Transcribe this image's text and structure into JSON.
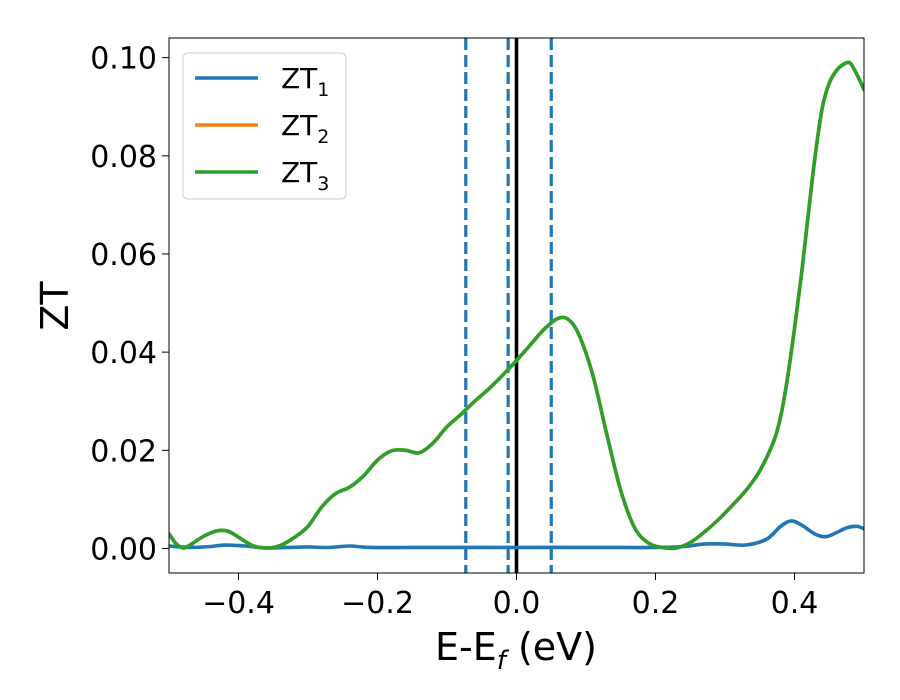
{
  "chart_data": {
    "type": "line",
    "title": "",
    "xlabel": "E-E",
    "xlabel_subscript": "f",
    "xlabel_unit": " (eV)",
    "ylabel": "ZT",
    "xlim": [
      -0.5,
      0.5
    ],
    "ylim": [
      -0.005,
      0.104
    ],
    "x_ticks": [
      -0.4,
      -0.2,
      0.0,
      0.2,
      0.4
    ],
    "x_tick_labels": [
      "−0.4",
      "−0.2",
      "0.0",
      "0.2",
      "0.4"
    ],
    "y_ticks": [
      0.0,
      0.02,
      0.04,
      0.06,
      0.08,
      0.1
    ],
    "y_tick_labels": [
      "0.00",
      "0.02",
      "0.04",
      "0.06",
      "0.08",
      "0.10"
    ],
    "grid": false,
    "legend_position": "top-left",
    "vertical_lines": [
      {
        "x": -0.073,
        "style": "dashed",
        "color": "#1f77b4"
      },
      {
        "x": -0.012,
        "style": "dashed",
        "color": "#1f77b4"
      },
      {
        "x": 0.0,
        "style": "solid",
        "color": "#000000"
      },
      {
        "x": 0.05,
        "style": "dashed",
        "color": "#1f77b4"
      }
    ],
    "series": [
      {
        "name": "ZT",
        "subscript": "1",
        "color": "#1f77b4",
        "points": [
          [
            -0.5,
            0.0005
          ],
          [
            -0.47,
            0.0002
          ],
          [
            -0.44,
            0.0004
          ],
          [
            -0.42,
            0.0007
          ],
          [
            -0.39,
            0.0005
          ],
          [
            -0.36,
            0.0001
          ],
          [
            -0.33,
            0.0002
          ],
          [
            -0.3,
            0.0003
          ],
          [
            -0.27,
            0.0002
          ],
          [
            -0.24,
            0.0005
          ],
          [
            -0.21,
            0.0002
          ],
          [
            -0.15,
            0.0002
          ],
          [
            -0.1,
            0.0002
          ],
          [
            -0.05,
            0.0002
          ],
          [
            0.0,
            0.0002
          ],
          [
            0.05,
            0.0002
          ],
          [
            0.1,
            0.0002
          ],
          [
            0.15,
            0.0002
          ],
          [
            0.2,
            0.0002
          ],
          [
            0.24,
            0.0004
          ],
          [
            0.27,
            0.0009
          ],
          [
            0.3,
            0.0009
          ],
          [
            0.33,
            0.0007
          ],
          [
            0.36,
            0.0019
          ],
          [
            0.38,
            0.0045
          ],
          [
            0.395,
            0.0056
          ],
          [
            0.41,
            0.0048
          ],
          [
            0.43,
            0.0029
          ],
          [
            0.445,
            0.0024
          ],
          [
            0.46,
            0.0032
          ],
          [
            0.475,
            0.0042
          ],
          [
            0.49,
            0.0045
          ],
          [
            0.5,
            0.004
          ]
        ]
      },
      {
        "name": "ZT",
        "subscript": "2",
        "color": "#ff7f0e",
        "points": [
          [
            -0.5,
            0.003
          ],
          [
            -0.49,
            0.001
          ],
          [
            -0.48,
            0.0001
          ],
          [
            -0.47,
            0.0007
          ],
          [
            -0.45,
            0.0025
          ],
          [
            -0.43,
            0.0036
          ],
          [
            -0.415,
            0.0035
          ],
          [
            -0.4,
            0.0023
          ],
          [
            -0.38,
            0.0006
          ],
          [
            -0.36,
            0.0001
          ],
          [
            -0.34,
            0.0006
          ],
          [
            -0.32,
            0.0022
          ],
          [
            -0.3,
            0.0045
          ],
          [
            -0.28,
            0.0085
          ],
          [
            -0.26,
            0.0112
          ],
          [
            -0.24,
            0.0125
          ],
          [
            -0.22,
            0.0148
          ],
          [
            -0.2,
            0.018
          ],
          [
            -0.18,
            0.0199
          ],
          [
            -0.16,
            0.02
          ],
          [
            -0.14,
            0.0195
          ],
          [
            -0.12,
            0.0215
          ],
          [
            -0.1,
            0.0248
          ],
          [
            -0.08,
            0.0273
          ],
          [
            -0.06,
            0.03
          ],
          [
            -0.04,
            0.0325
          ],
          [
            -0.02,
            0.0353
          ],
          [
            0.0,
            0.0383
          ],
          [
            0.02,
            0.0415
          ],
          [
            0.04,
            0.0447
          ],
          [
            0.06,
            0.0469
          ],
          [
            0.075,
            0.0466
          ],
          [
            0.09,
            0.0435
          ],
          [
            0.11,
            0.0352
          ],
          [
            0.13,
            0.0232
          ],
          [
            0.15,
            0.0118
          ],
          [
            0.17,
            0.0042
          ],
          [
            0.19,
            0.0011
          ],
          [
            0.21,
            0.0002
          ],
          [
            0.23,
            0.0001
          ],
          [
            0.25,
            0.0012
          ],
          [
            0.27,
            0.0033
          ],
          [
            0.29,
            0.0058
          ],
          [
            0.31,
            0.0087
          ],
          [
            0.33,
            0.0118
          ],
          [
            0.35,
            0.0158
          ],
          [
            0.37,
            0.0218
          ],
          [
            0.38,
            0.0268
          ],
          [
            0.39,
            0.0348
          ],
          [
            0.4,
            0.0448
          ],
          [
            0.41,
            0.0558
          ],
          [
            0.42,
            0.0683
          ],
          [
            0.43,
            0.0803
          ],
          [
            0.44,
            0.0898
          ],
          [
            0.45,
            0.0948
          ],
          [
            0.46,
            0.0973
          ],
          [
            0.47,
            0.0986
          ],
          [
            0.48,
            0.0989
          ],
          [
            0.49,
            0.0965
          ],
          [
            0.5,
            0.0935
          ]
        ]
      },
      {
        "name": "ZT",
        "subscript": "3",
        "color": "#2ca02c",
        "points": [
          [
            -0.5,
            0.003
          ],
          [
            -0.49,
            0.001
          ],
          [
            -0.48,
            0.0001
          ],
          [
            -0.47,
            0.0007
          ],
          [
            -0.45,
            0.0025
          ],
          [
            -0.43,
            0.0036
          ],
          [
            -0.415,
            0.0035
          ],
          [
            -0.4,
            0.0023
          ],
          [
            -0.38,
            0.0006
          ],
          [
            -0.36,
            0.0001
          ],
          [
            -0.34,
            0.0006
          ],
          [
            -0.32,
            0.0022
          ],
          [
            -0.3,
            0.0045
          ],
          [
            -0.28,
            0.0085
          ],
          [
            -0.26,
            0.0112
          ],
          [
            -0.24,
            0.0125
          ],
          [
            -0.22,
            0.0148
          ],
          [
            -0.2,
            0.018
          ],
          [
            -0.18,
            0.0199
          ],
          [
            -0.16,
            0.02
          ],
          [
            -0.14,
            0.0195
          ],
          [
            -0.12,
            0.0215
          ],
          [
            -0.1,
            0.0248
          ],
          [
            -0.08,
            0.0273
          ],
          [
            -0.06,
            0.03
          ],
          [
            -0.04,
            0.0325
          ],
          [
            -0.02,
            0.0353
          ],
          [
            0.0,
            0.0383
          ],
          [
            0.02,
            0.0415
          ],
          [
            0.04,
            0.0447
          ],
          [
            0.06,
            0.0469
          ],
          [
            0.075,
            0.0466
          ],
          [
            0.09,
            0.0435
          ],
          [
            0.11,
            0.0352
          ],
          [
            0.13,
            0.0232
          ],
          [
            0.15,
            0.0118
          ],
          [
            0.17,
            0.0042
          ],
          [
            0.19,
            0.0011
          ],
          [
            0.21,
            0.0002
          ],
          [
            0.23,
            0.0001
          ],
          [
            0.25,
            0.0012
          ],
          [
            0.27,
            0.0033
          ],
          [
            0.29,
            0.0058
          ],
          [
            0.31,
            0.0087
          ],
          [
            0.33,
            0.0118
          ],
          [
            0.35,
            0.0158
          ],
          [
            0.37,
            0.0218
          ],
          [
            0.38,
            0.0268
          ],
          [
            0.39,
            0.0348
          ],
          [
            0.4,
            0.0448
          ],
          [
            0.41,
            0.0558
          ],
          [
            0.42,
            0.0683
          ],
          [
            0.43,
            0.0803
          ],
          [
            0.44,
            0.0898
          ],
          [
            0.45,
            0.0948
          ],
          [
            0.46,
            0.0973
          ],
          [
            0.47,
            0.0986
          ],
          [
            0.48,
            0.0989
          ],
          [
            0.49,
            0.0965
          ],
          [
            0.5,
            0.0935
          ]
        ]
      }
    ]
  }
}
